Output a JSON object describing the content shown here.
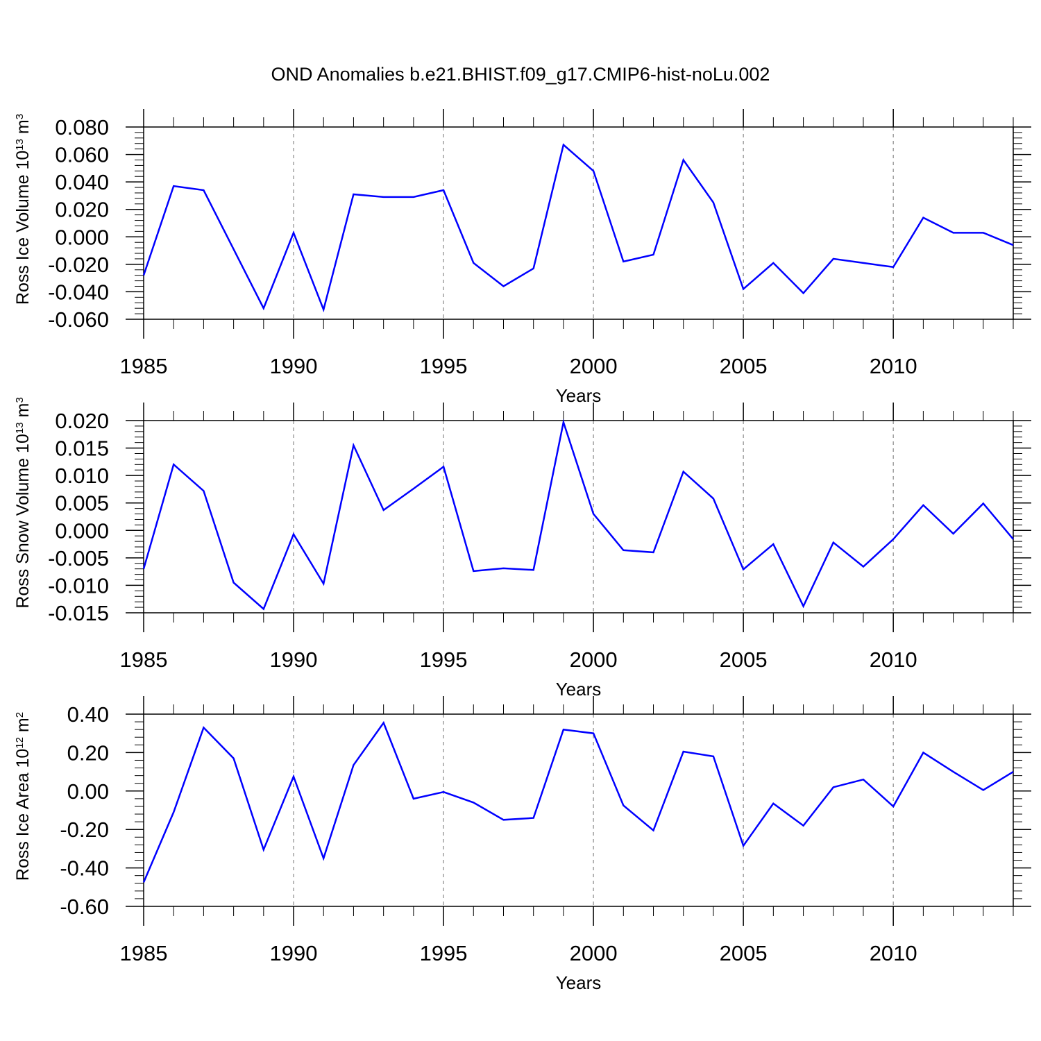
{
  "title": "OND Anomalies b.e21.BHIST.f09_g17.CMIP6-hist-noLu.002",
  "series_color": "#0000ff",
  "chart_data": [
    {
      "type": "line",
      "xlabel": "Years",
      "ylabel_parts": {
        "text": "Ross Ice Volume 10",
        "exp1": "13",
        "unit": "m",
        "exp2": "3"
      },
      "ylim": [
        -0.06,
        0.08
      ],
      "xlim": [
        1985,
        2014
      ],
      "grid": "vertical dashed at major x ticks",
      "yticks": [
        "0.080",
        "0.060",
        "0.040",
        "0.020",
        "0.000",
        "-0.020",
        "-0.040",
        "-0.060"
      ],
      "ytick_values": [
        0.08,
        0.06,
        0.04,
        0.02,
        0.0,
        -0.02,
        -0.04,
        -0.06
      ],
      "xticks": [
        "1985",
        "1990",
        "1995",
        "2000",
        "2005",
        "2010"
      ],
      "xtick_values": [
        1985,
        1990,
        1995,
        2000,
        2005,
        2010
      ],
      "x": [
        1985,
        1986,
        1987,
        1988,
        1989,
        1990,
        1991,
        1992,
        1993,
        1994,
        1995,
        1996,
        1997,
        1998,
        1999,
        2000,
        2001,
        2002,
        2003,
        2004,
        2005,
        2006,
        2007,
        2008,
        2009,
        2010,
        2011,
        2012,
        2013,
        2014
      ],
      "values": [
        -0.028,
        0.037,
        0.034,
        -0.009,
        -0.052,
        0.003,
        -0.053,
        0.031,
        0.029,
        0.029,
        0.034,
        -0.019,
        -0.036,
        -0.023,
        0.067,
        0.048,
        -0.018,
        -0.013,
        0.056,
        0.025,
        -0.038,
        -0.019,
        -0.041,
        -0.016,
        -0.019,
        -0.022,
        0.014,
        0.003,
        0.003,
        -0.006
      ]
    },
    {
      "type": "line",
      "xlabel": "Years",
      "ylabel_parts": {
        "text": "Ross Snow Volume 10",
        "exp1": "13",
        "unit": "m",
        "exp2": "3"
      },
      "ylim": [
        -0.015,
        0.02
      ],
      "xlim": [
        1985,
        2014
      ],
      "grid": "vertical dashed at major x ticks",
      "yticks": [
        "0.020",
        "0.015",
        "0.010",
        "0.005",
        "0.000",
        "-0.005",
        "-0.010",
        "-0.015"
      ],
      "ytick_values": [
        0.02,
        0.015,
        0.01,
        0.005,
        0.0,
        -0.005,
        -0.01,
        -0.015
      ],
      "xticks": [
        "1985",
        "1990",
        "1995",
        "2000",
        "2005",
        "2010"
      ],
      "xtick_values": [
        1985,
        1990,
        1995,
        2000,
        2005,
        2010
      ],
      "x": [
        1985,
        1986,
        1987,
        1988,
        1989,
        1990,
        1991,
        1992,
        1993,
        1994,
        1995,
        1996,
        1997,
        1998,
        1999,
        2000,
        2001,
        2002,
        2003,
        2004,
        2005,
        2006,
        2007,
        2008,
        2009,
        2010,
        2011,
        2012,
        2013,
        2014
      ],
      "values": [
        -0.007,
        0.012,
        0.0072,
        -0.0095,
        -0.0143,
        -0.0007,
        -0.0097,
        0.0155,
        0.0037,
        0.0076,
        0.0116,
        -0.0074,
        -0.0069,
        -0.0072,
        0.0197,
        0.003,
        -0.0036,
        -0.004,
        0.0107,
        0.0058,
        -0.0071,
        -0.0025,
        -0.0138,
        -0.0022,
        -0.0066,
        -0.0016,
        0.0046,
        -0.0006,
        0.0049,
        -0.0016
      ]
    },
    {
      "type": "line",
      "xlabel": "Years",
      "ylabel_parts": {
        "text": "Ross Ice Area 10",
        "exp1": "12",
        "unit": "m",
        "exp2": "2"
      },
      "ylim": [
        -0.6,
        0.4
      ],
      "xlim": [
        1985,
        2014
      ],
      "grid": "vertical dashed at major x ticks",
      "yticks": [
        "0.40",
        "0.20",
        "0.00",
        "-0.20",
        "-0.40",
        "-0.60"
      ],
      "ytick_values": [
        0.4,
        0.2,
        0.0,
        -0.2,
        -0.4,
        -0.6
      ],
      "xticks": [
        "1985",
        "1990",
        "1995",
        "2000",
        "2005",
        "2010"
      ],
      "xtick_values": [
        1985,
        1990,
        1995,
        2000,
        2005,
        2010
      ],
      "x": [
        1985,
        1986,
        1987,
        1988,
        1989,
        1990,
        1991,
        1992,
        1993,
        1994,
        1995,
        1996,
        1997,
        1998,
        1999,
        2000,
        2001,
        2002,
        2003,
        2004,
        2005,
        2006,
        2007,
        2008,
        2009,
        2010,
        2011,
        2012,
        2013,
        2014
      ],
      "values": [
        -0.475,
        -0.11,
        0.33,
        0.17,
        -0.305,
        0.075,
        -0.35,
        0.135,
        0.355,
        -0.04,
        -0.005,
        -0.06,
        -0.15,
        -0.14,
        0.32,
        0.3,
        -0.075,
        -0.205,
        0.205,
        0.18,
        -0.285,
        -0.065,
        -0.18,
        0.02,
        0.06,
        -0.08,
        0.2,
        0.1,
        0.005,
        0.1
      ]
    }
  ]
}
